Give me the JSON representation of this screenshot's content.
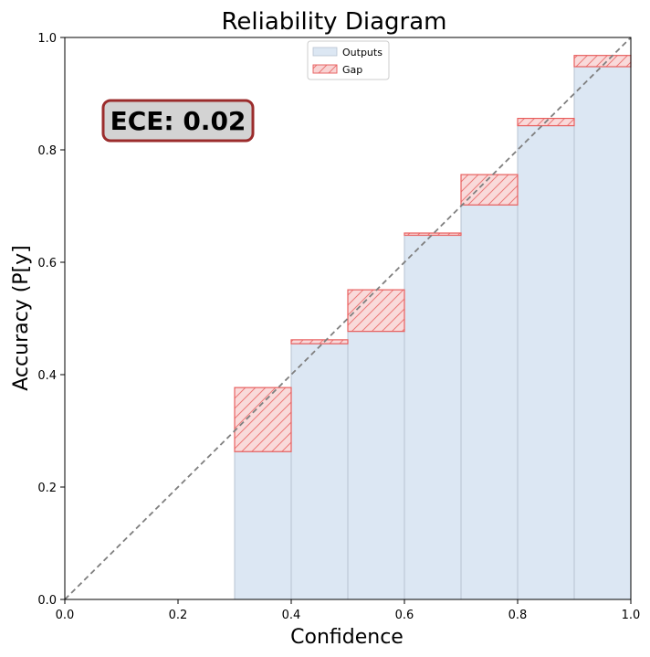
{
  "chart_data": {
    "type": "bar",
    "title": "Reliability Diagram",
    "xlabel": "Confidence",
    "ylabel": "Accuracy (P[y]",
    "xlim": [
      0.0,
      1.0
    ],
    "ylim": [
      0.0,
      1.0
    ],
    "xticks": [
      "0.0",
      "0.2",
      "0.4",
      "0.6",
      "0.8",
      "1.0"
    ],
    "yticks": [
      "0.0",
      "0.2",
      "0.4",
      "0.6",
      "0.8",
      "1.0"
    ],
    "grid": false,
    "legend_position": "top-center",
    "bin_width": 0.1,
    "bins": [
      {
        "left": 0.3,
        "output": 0.263,
        "expected": 0.377
      },
      {
        "left": 0.4,
        "output": 0.455,
        "expected": 0.462
      },
      {
        "left": 0.5,
        "output": 0.477,
        "expected": 0.551
      },
      {
        "left": 0.6,
        "output": 0.648,
        "expected": 0.652
      },
      {
        "left": 0.7,
        "output": 0.702,
        "expected": 0.756
      },
      {
        "left": 0.8,
        "output": 0.843,
        "expected": 0.856
      },
      {
        "left": 0.9,
        "output": 0.948,
        "expected": 0.968
      }
    ],
    "series": [
      {
        "name": "Outputs",
        "color": "#dce7f3"
      },
      {
        "name": "Gap",
        "color": "#f4b6b6",
        "edge": "#e8605f"
      }
    ],
    "diagonal_color": "#7f7f7f",
    "annotation": {
      "text": "ECE: 0.02",
      "box_color": "#d3d3d3",
      "border_color": "#9b2c2c"
    }
  }
}
